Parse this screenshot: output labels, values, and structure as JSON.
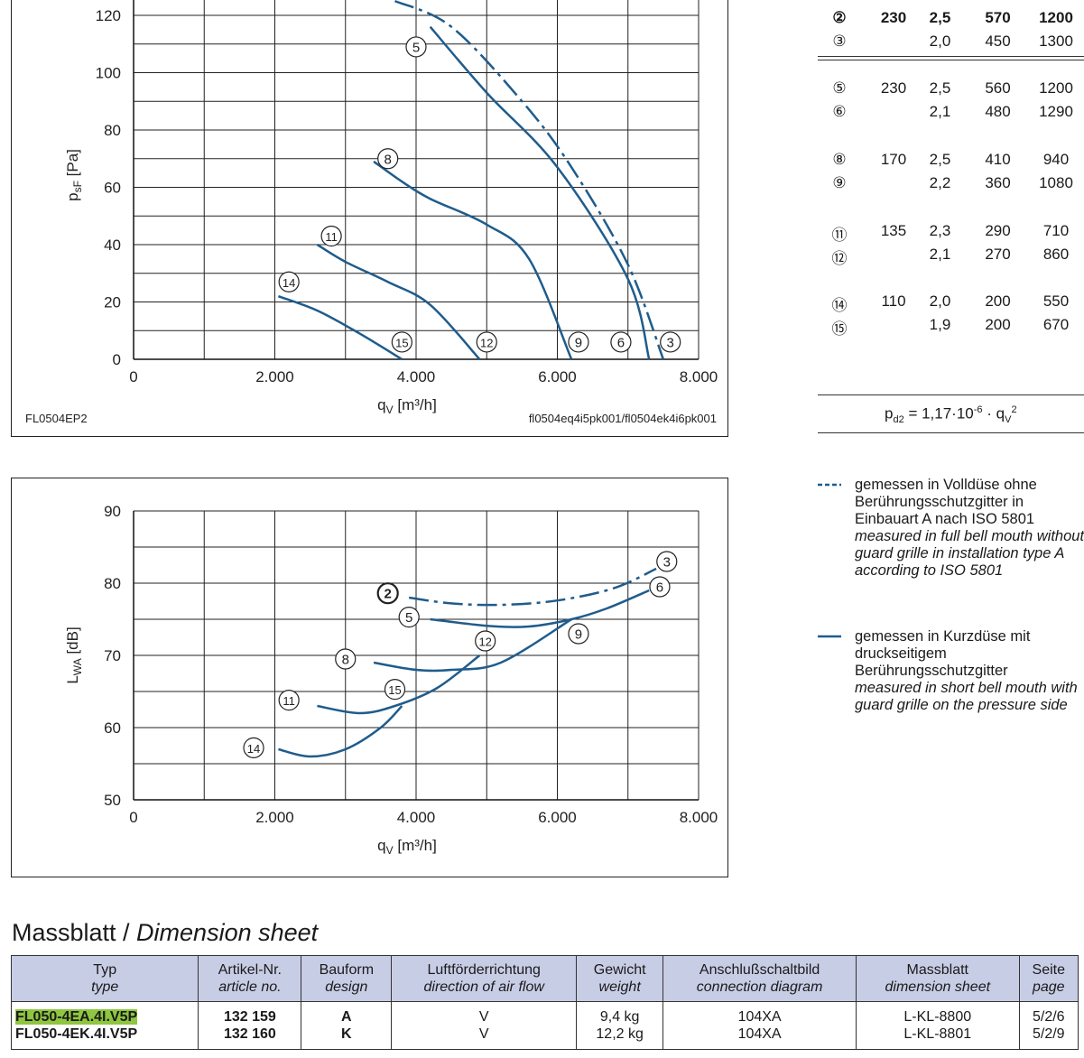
{
  "chart_data": [
    {
      "type": "line",
      "id": "pressure",
      "xlabel": "qV [m³/h]",
      "ylabel": "psF [Pa]",
      "xlim": [
        0,
        8000
      ],
      "ylim": [
        0,
        120
      ],
      "x_ticks": [
        0,
        2000,
        4000,
        6000,
        8000
      ],
      "x_tick_labels": [
        "0",
        "2.000",
        "4.000",
        "6.000",
        "8.000"
      ],
      "y_ticks": [
        0,
        20,
        40,
        60,
        80,
        100,
        120
      ],
      "y_tick_labels": [
        "0",
        "20",
        "40",
        "60",
        "80",
        "100",
        "120"
      ],
      "footer_left": "FL0504EP2",
      "footer_right": "fl0504eq4i5pk001/fl0504ek4i6pk001",
      "series": [
        {
          "name": "3",
          "style": "dashed",
          "points": [
            [
              3700,
              125
            ],
            [
              4500,
              116
            ],
            [
              5500,
              90
            ],
            [
              6200,
              67
            ],
            [
              7000,
              33
            ],
            [
              7500,
              0
            ]
          ]
        },
        {
          "name": "5",
          "style": "solid",
          "points": [
            [
              4200,
              116
            ],
            [
              5000,
              93
            ],
            [
              6000,
              67
            ],
            [
              7000,
              28
            ],
            [
              7300,
              0
            ]
          ]
        },
        {
          "name": "8",
          "style": "solid",
          "points": [
            [
              3400,
              69
            ],
            [
              3800,
              62
            ],
            [
              4200,
              56
            ],
            [
              5000,
              47
            ],
            [
              5600,
              35
            ],
            [
              6200,
              0
            ]
          ]
        },
        {
          "name": "11",
          "style": "solid",
          "points": [
            [
              2600,
              40
            ],
            [
              3000,
              34
            ],
            [
              3600,
              27
            ],
            [
              4200,
              19
            ],
            [
              4900,
              0
            ]
          ]
        },
        {
          "name": "14",
          "style": "solid",
          "points": [
            [
              2050,
              22
            ],
            [
              2600,
              17
            ],
            [
              3200,
              9
            ],
            [
              3800,
              0
            ]
          ]
        }
      ],
      "labels": [
        {
          "text": "5",
          "x": 4000,
          "y": 109
        },
        {
          "text": "8",
          "x": 3600,
          "y": 70
        },
        {
          "text": "11",
          "x": 2800,
          "y": 43
        },
        {
          "text": "14",
          "x": 2200,
          "y": 27
        },
        {
          "text": "15",
          "x": 3800,
          "y": 6
        },
        {
          "text": "12",
          "x": 5000,
          "y": 6
        },
        {
          "text": "9",
          "x": 6300,
          "y": 6
        },
        {
          "text": "6",
          "x": 6900,
          "y": 6
        },
        {
          "text": "3",
          "x": 7600,
          "y": 6
        }
      ]
    },
    {
      "type": "line",
      "id": "sound",
      "xlabel": "qV [m³/h]",
      "ylabel": "LWA [dB]",
      "xlim": [
        0,
        8000
      ],
      "ylim": [
        50,
        90
      ],
      "x_ticks": [
        0,
        2000,
        4000,
        6000,
        8000
      ],
      "x_tick_labels": [
        "0",
        "2.000",
        "4.000",
        "6.000",
        "8.000"
      ],
      "y_ticks": [
        50,
        60,
        70,
        80,
        90
      ],
      "y_tick_labels": [
        "50",
        "60",
        "70",
        "80",
        "90"
      ],
      "series": [
        {
          "name": "3",
          "style": "dashed",
          "points": [
            [
              3900,
              78
            ],
            [
              4500,
              77.2
            ],
            [
              5200,
              77
            ],
            [
              6000,
              77.6
            ],
            [
              6800,
              79.3
            ],
            [
              7400,
              82
            ]
          ]
        },
        {
          "name": "5",
          "style": "solid",
          "points": [
            [
              4200,
              75
            ],
            [
              5000,
              74.1
            ],
            [
              5600,
              74
            ],
            [
              6200,
              75
            ],
            [
              6700,
              76.5
            ],
            [
              7300,
              79
            ]
          ]
        },
        {
          "name": "8",
          "style": "solid",
          "points": [
            [
              3400,
              69
            ],
            [
              4000,
              68
            ],
            [
              4500,
              68
            ],
            [
              5200,
              69
            ],
            [
              6200,
              75
            ]
          ]
        },
        {
          "name": "11",
          "style": "solid",
          "points": [
            [
              2600,
              63
            ],
            [
              3200,
              62
            ],
            [
              3700,
              63
            ],
            [
              4300,
              65.5
            ],
            [
              4900,
              70
            ]
          ]
        },
        {
          "name": "14",
          "style": "solid",
          "points": [
            [
              2050,
              57
            ],
            [
              2500,
              56
            ],
            [
              3000,
              57
            ],
            [
              3500,
              60
            ],
            [
              3800,
              63
            ]
          ]
        }
      ],
      "labels": [
        {
          "text": "3",
          "x": 7550,
          "y": 83
        },
        {
          "text": "6",
          "x": 7450,
          "y": 79.5
        },
        {
          "text": "5",
          "x": 3900,
          "y": 75.3
        },
        {
          "text": "9",
          "x": 6300,
          "y": 73
        },
        {
          "text": "12",
          "x": 4980,
          "y": 72
        },
        {
          "text": "8",
          "x": 3000,
          "y": 69.5
        },
        {
          "text": "15",
          "x": 3700,
          "y": 65.3
        },
        {
          "text": "11",
          "x": 2200,
          "y": 63.8
        },
        {
          "text": "14",
          "x": 1700,
          "y": 57.2
        },
        {
          "text": "2",
          "x": 3600,
          "y": 78.6,
          "bold": true
        }
      ]
    }
  ],
  "operating_points": {
    "rows": [
      {
        "mark": "②",
        "voltage": "230",
        "current": "2,5",
        "power": "570",
        "speed": "1200",
        "bold": true
      },
      {
        "mark": "③",
        "voltage": "",
        "current": "2,0",
        "power": "450",
        "speed": "1300"
      },
      {
        "mark": "⑤",
        "voltage": "230",
        "current": "2,5",
        "power": "560",
        "speed": "1200"
      },
      {
        "mark": "⑥",
        "voltage": "",
        "current": "2,1",
        "power": "480",
        "speed": "1290"
      },
      {
        "mark": "⑧",
        "voltage": "170",
        "current": "2,5",
        "power": "410",
        "speed": "940"
      },
      {
        "mark": "⑨",
        "voltage": "",
        "current": "2,2",
        "power": "360",
        "speed": "1080"
      },
      {
        "mark": "⑪",
        "voltage": "135",
        "current": "2,3",
        "power": "290",
        "speed": "710"
      },
      {
        "mark": "⑫",
        "voltage": "",
        "current": "2,1",
        "power": "270",
        "speed": "860"
      },
      {
        "mark": "⑭",
        "voltage": "110",
        "current": "2,0",
        "power": "200",
        "speed": "550"
      },
      {
        "mark": "⑮",
        "voltage": "",
        "current": "1,9",
        "power": "200",
        "speed": "670"
      }
    ],
    "formula_prefix": "p",
    "formula_sub": "d2",
    "formula_mid": " = 1,17·10",
    "formula_exp": "-6",
    "formula_tail": " · q",
    "formula_sub2": "V",
    "formula_exp2": "2"
  },
  "legend": {
    "dashed": {
      "de": "gemessen in Volldüse ohne Berührungsschutzgitter in Einbauart A nach ISO 5801",
      "en": "measured in full bell mouth without guard grille in installation type A according to ISO 5801"
    },
    "solid": {
      "de": "gemessen in Kurzdüse mit druckseitigem Berührungsschutzgitter",
      "en": "measured in short bell mouth with guard grille on the pressure side"
    }
  },
  "dimension_sheet": {
    "title_de": "Massblatt / ",
    "title_en": "Dimension sheet",
    "headers": [
      {
        "de": "Typ",
        "en": "type"
      },
      {
        "de": "Artikel-Nr.",
        "en": "article no."
      },
      {
        "de": "Bauform",
        "en": "design"
      },
      {
        "de": "Luftförderrichtung",
        "en": "direction of air flow"
      },
      {
        "de": "Gewicht",
        "en": "weight"
      },
      {
        "de": "Anschlußschaltbild",
        "en": "connection diagram"
      },
      {
        "de": "Massblatt",
        "en": "dimension sheet"
      },
      {
        "de": "Seite",
        "en": "page"
      }
    ],
    "rows": [
      {
        "type": "FL050-4EA.4I.V5P",
        "article": "132 159",
        "design": "A",
        "direction": "V",
        "weight": "9,4 kg",
        "diagram": "104XA",
        "sheet": "L-KL-8800",
        "page": "5/2/6"
      },
      {
        "type": "FL050-4EK.4I.V5P",
        "article": "132 160",
        "design": "K",
        "direction": "V",
        "weight": "12,2 kg",
        "diagram": "104XA",
        "sheet": "L-KL-8801",
        "page": "5/2/9"
      }
    ]
  },
  "colors": {
    "curve": "#1f5c8c",
    "header_bg": "#c8cde6",
    "highlight": "#8ec63f"
  }
}
